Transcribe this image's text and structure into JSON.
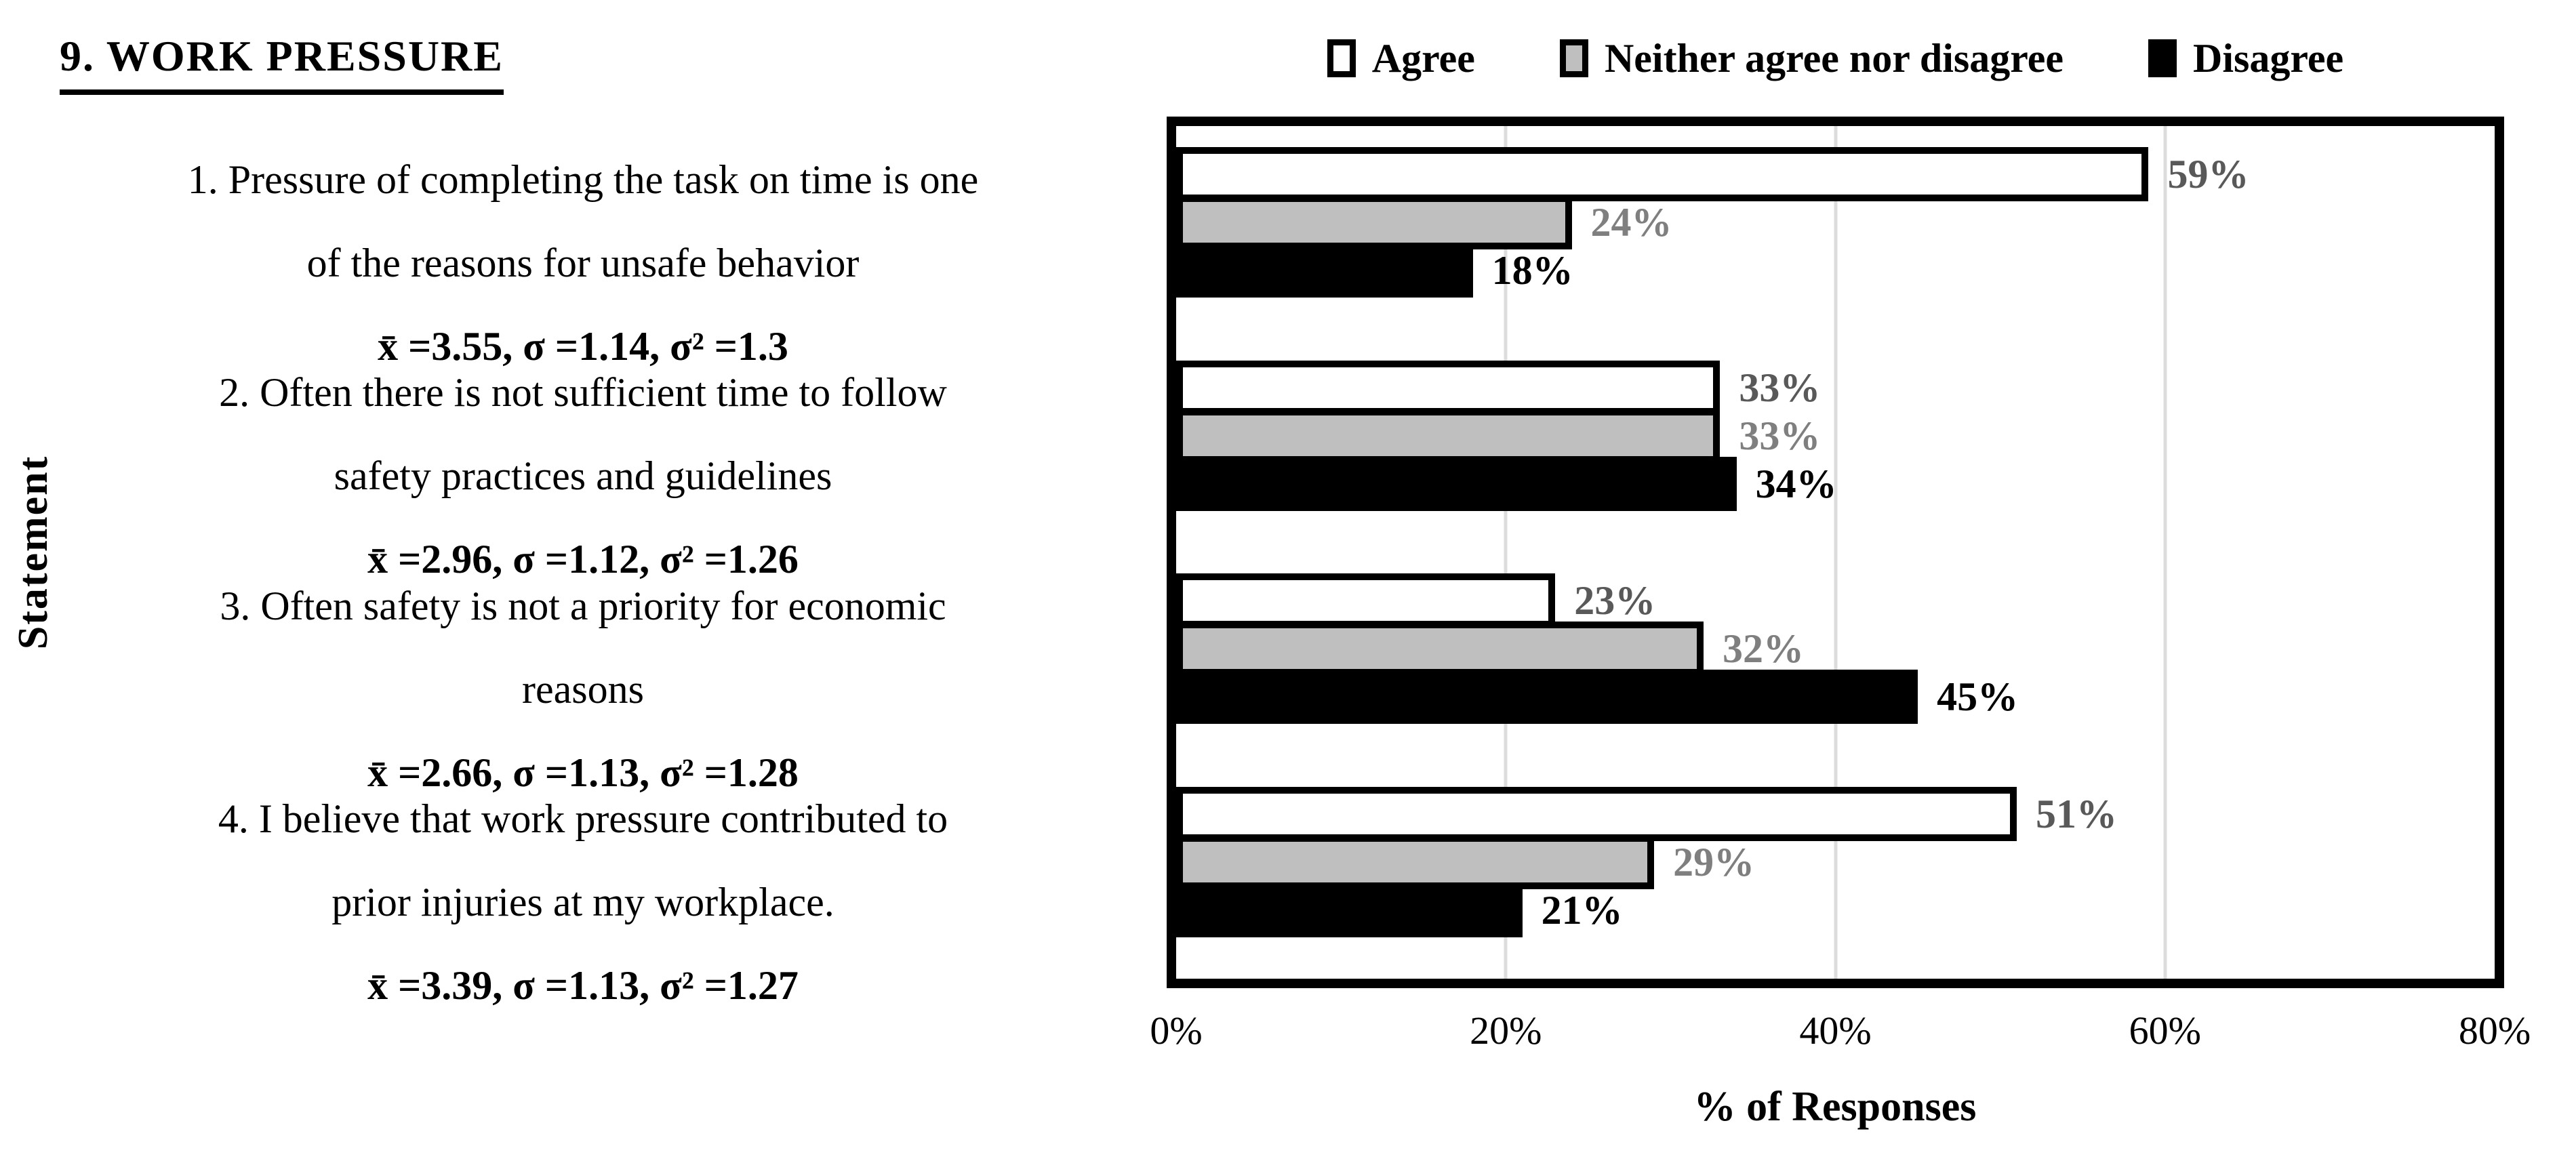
{
  "title": "9. WORK PRESSURE",
  "statements": [
    {
      "lines": [
        "1. Pressure of completing the task on time is one",
        "of the reasons for unsafe behavior"
      ],
      "stats": "x̄ =3.55, σ =1.14, σ² =1.3"
    },
    {
      "lines": [
        "2. Often there is not sufficient time to follow",
        "safety practices and guidelines"
      ],
      "stats": "x̄ =2.96, σ =1.12, σ² =1.26"
    },
    {
      "lines": [
        "3. Often safety is not a priority for economic",
        "reasons"
      ],
      "stats": "x̄ =2.66, σ =1.13, σ² =1.28"
    },
    {
      "lines": [
        "4. I believe that work pressure contributed to",
        "prior injuries at my workplace."
      ],
      "stats": "x̄ =3.39, σ =1.13, σ² =1.27"
    }
  ],
  "chart_data": {
    "type": "bar",
    "orientation": "horizontal",
    "title": "9. WORK PRESSURE",
    "xlabel": "% of Responses",
    "ylabel": "Statement",
    "xlim": [
      0,
      80
    ],
    "xticks": [
      "0%",
      "20%",
      "40%",
      "60%",
      "80%"
    ],
    "grid": true,
    "gridline_color": "#DCDCDC",
    "plot_border_color": "#000000",
    "legend_position": "top",
    "value_suffix": "%",
    "categories": [
      "1. Pressure of completing the task on time is one of the reasons for unsafe behavior x̄ =3.55, σ =1.14, σ² =1.3",
      "2. Often there is not sufficient time to follow safety practices and guidelines x̄ =2.96, σ =1.12, σ² =1.26",
      "3. Often safety is not a priority for economic reasons x̄ =2.66, σ =1.13, σ² =1.28",
      "4. I believe that work pressure contributed to prior injuries at my workplace. x̄ =3.39, σ =1.13, σ² =1.27"
    ],
    "series": [
      {
        "name": "Agree",
        "color": "#FFFFFF",
        "border_color": "#000000",
        "label_color": "#595959",
        "values": [
          59,
          33,
          23,
          51
        ]
      },
      {
        "name": "Neither agree nor disagree",
        "color": "#BFBFBF",
        "border_color": "#000000",
        "label_color": "#7F7F7F",
        "values": [
          24,
          33,
          32,
          29
        ]
      },
      {
        "name": "Disagree",
        "color": "#000000",
        "border_color": "#000000",
        "label_color": "#000000",
        "values": [
          18,
          34,
          45,
          21
        ]
      }
    ]
  }
}
